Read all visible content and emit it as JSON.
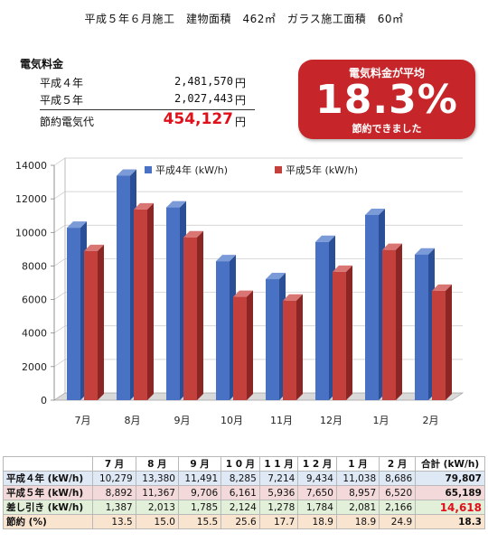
{
  "header": {
    "text": "平成５年６月施工　建物面積　462㎡　ガラス施工面積　60㎡"
  },
  "fees": {
    "title": "電気料金",
    "rows": [
      {
        "label": "平成４年",
        "value": "2,481,570",
        "unit": "円"
      },
      {
        "label": "平成５年",
        "value": "2,027,443",
        "unit": "円"
      }
    ],
    "total": {
      "label": "節約電気代",
      "value": "454,127",
      "unit": "円"
    }
  },
  "badge": {
    "line1": "電気料金が平均",
    "percent": "18.3%",
    "line2": "節約できました"
  },
  "colors": {
    "series1": "#4a72c4",
    "series2": "#c4403d",
    "badge": "#c6262a",
    "highlight": "#e0101a"
  },
  "chart_data": {
    "type": "bar",
    "categories": [
      "7月",
      "8月",
      "9月",
      "10月",
      "11月",
      "12月",
      "1月",
      "2月"
    ],
    "series": [
      {
        "name": "平成4年 (kW/h)",
        "values": [
          10279,
          13380,
          11491,
          8285,
          7214,
          9434,
          11038,
          8686
        ]
      },
      {
        "name": "平成5年 (kW/h)",
        "values": [
          8892,
          11367,
          9706,
          6161,
          5936,
          7650,
          8957,
          6520
        ]
      }
    ],
    "yticks": [
      "0",
      "2000",
      "4000",
      "6000",
      "8000",
      "10000",
      "12000",
      "14000"
    ],
    "ylim": [
      0,
      14000
    ],
    "legend": "top",
    "grid": true
  },
  "table": {
    "headers": [
      "7 月",
      "8 月",
      "9 月",
      "1 0 月",
      "1 1 月",
      "1 2 月",
      "1 月",
      "2 月",
      "合計 (kW/h)"
    ],
    "rows": [
      {
        "label": "平成４年 (kW/h)",
        "cells": [
          "10,279",
          "13,380",
          "11,491",
          "8,285",
          "7,214",
          "9,434",
          "11,038",
          "8,686",
          "79,807"
        ]
      },
      {
        "label": "平成５年 (kW/h)",
        "cells": [
          "8,892",
          "11,367",
          "9,706",
          "6,161",
          "5,936",
          "7,650",
          "8,957",
          "6,520",
          "65,189"
        ]
      },
      {
        "label": "差し引き (kW/h)",
        "cells": [
          "1,387",
          "2,013",
          "1,785",
          "2,124",
          "1,278",
          "1,784",
          "2,081",
          "2,166",
          "14,618"
        ]
      },
      {
        "label": "節約 (%)",
        "cells": [
          "13.5",
          "15.0",
          "15.5",
          "25.6",
          "17.7",
          "18.9",
          "18.9",
          "24.9",
          "18.3"
        ]
      }
    ]
  }
}
